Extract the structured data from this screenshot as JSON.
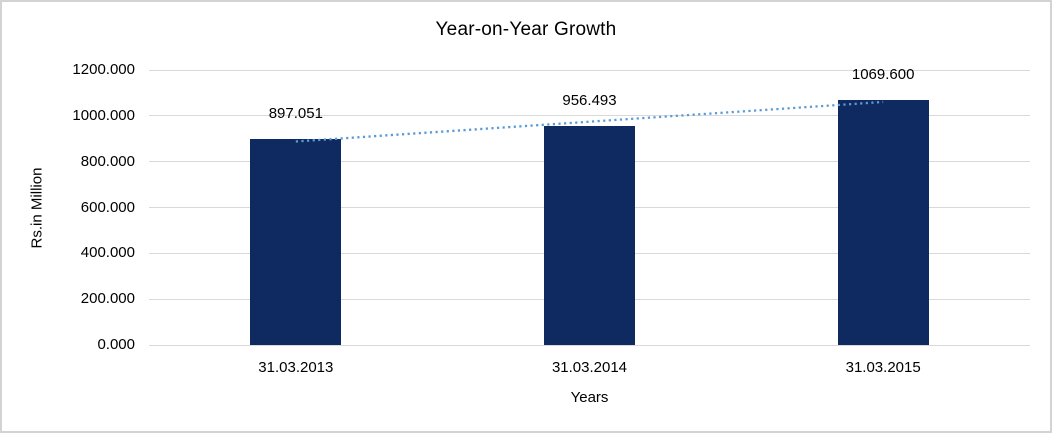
{
  "chart_data": {
    "type": "bar",
    "title": "Year-on-Year Growth",
    "xlabel": "Years",
    "ylabel": "Rs.in Million",
    "categories": [
      "31.03.2013",
      "31.03.2014",
      "31.03.2015"
    ],
    "values": [
      897.051,
      956.493,
      1069.6
    ],
    "data_labels": [
      "897.051",
      "956.493",
      "1069.600"
    ],
    "ylim": [
      0,
      1200
    ],
    "ytick_step": 200,
    "ytick_labels": [
      "0.000",
      "200.000",
      "400.000",
      "600.000",
      "800.000",
      "1000.000",
      "1200.000"
    ],
    "grid": true,
    "legend": false,
    "trendline": {
      "type": "linear",
      "style": "dotted"
    },
    "colors": {
      "bar": "#0e2a60",
      "trendline": "#5b9bd5",
      "gridline": "#d9d9d9",
      "text": "#000000",
      "background": "#ffffff",
      "frame_border": "#d3d3d3"
    }
  }
}
